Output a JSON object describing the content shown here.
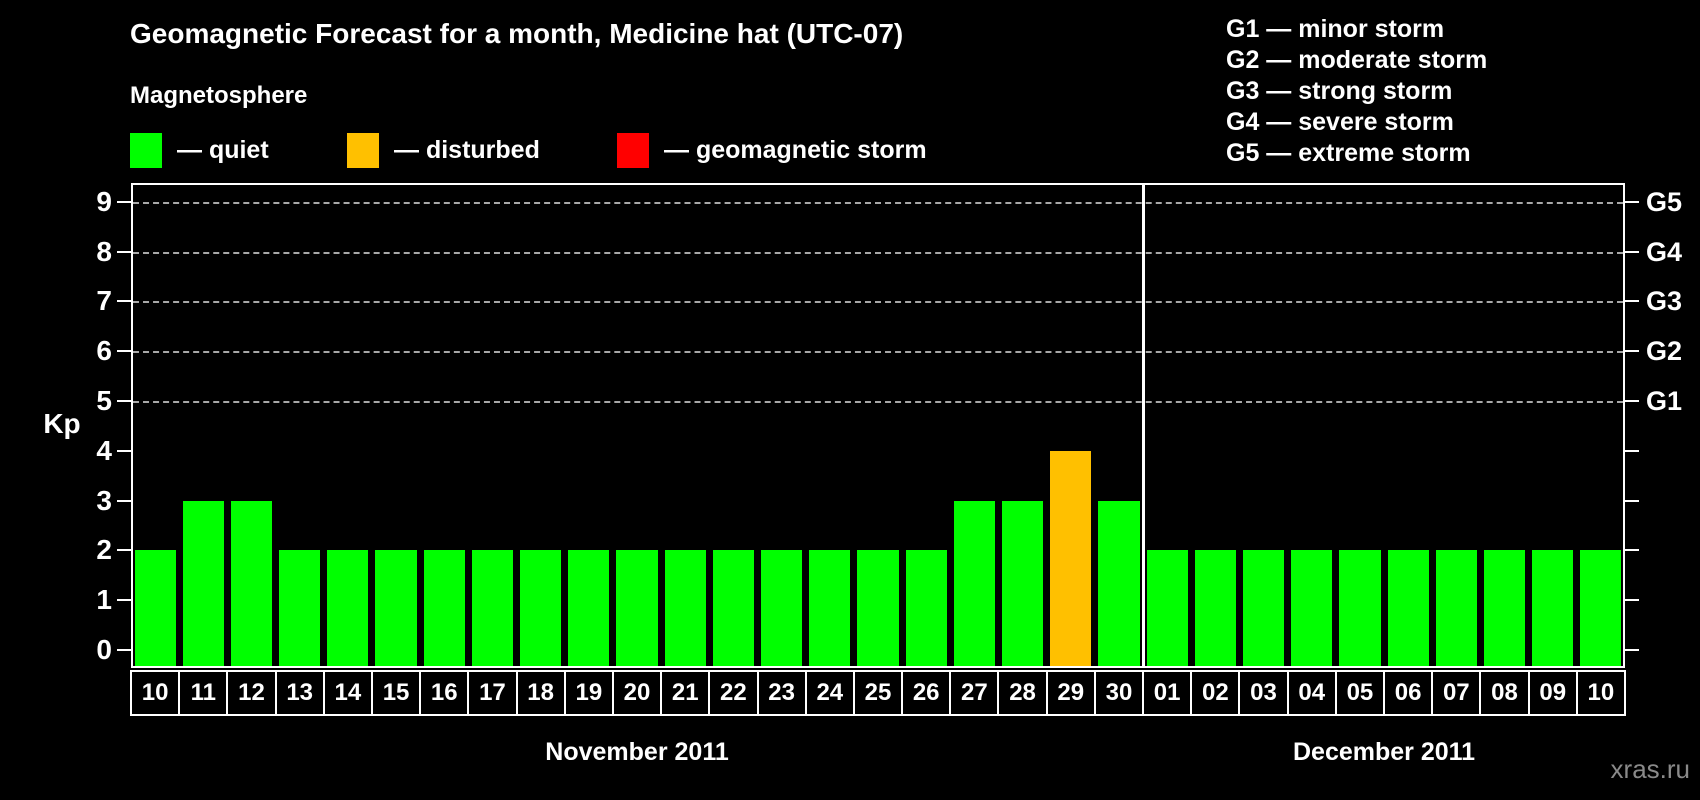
{
  "title": "Geomagnetic Forecast for a month, Medicine hat (UTC-07)",
  "legend": {
    "title": "Magnetosphere",
    "items": [
      {
        "state": "quiet",
        "label": "— quiet",
        "color": "#00ff00"
      },
      {
        "state": "disturbed",
        "label": "— disturbed",
        "color": "#ffc000"
      },
      {
        "state": "storm",
        "label": "— geomagnetic storm",
        "color": "#ff0000"
      }
    ]
  },
  "storm_scale_legend": [
    "G1 — minor storm",
    "G2 — moderate storm",
    "G3 — strong storm",
    "G4 — severe storm",
    "G5 — extreme storm"
  ],
  "watermark": "xras.ru",
  "chart_data": {
    "type": "bar",
    "title": "Geomagnetic Forecast for a month, Medicine hat (UTC-07)",
    "ylabel": "Kp",
    "ylim": [
      0,
      9.4
    ],
    "yticks": [
      0,
      1,
      2,
      3,
      4,
      5,
      6,
      7,
      8,
      9
    ],
    "gridline_levels": [
      5,
      6,
      7,
      8,
      9
    ],
    "grid_style": "dashed",
    "legend_position": "top",
    "right_axis_labels": [
      {
        "level": 5,
        "label": "G1"
      },
      {
        "level": 6,
        "label": "G2"
      },
      {
        "level": 7,
        "label": "G3"
      },
      {
        "level": 8,
        "label": "G4"
      },
      {
        "level": 9,
        "label": "G5"
      }
    ],
    "state_colors": {
      "quiet": "#00ff00",
      "disturbed": "#ffc000",
      "storm": "#ff0000"
    },
    "months": [
      {
        "label": "November 2011",
        "days": [
          "10",
          "11",
          "12",
          "13",
          "14",
          "15",
          "16",
          "17",
          "18",
          "19",
          "20",
          "21",
          "22",
          "23",
          "24",
          "25",
          "26",
          "27",
          "28",
          "29",
          "30"
        ],
        "values": [
          2,
          3,
          3,
          2,
          2,
          2,
          2,
          2,
          2,
          2,
          2,
          2,
          2,
          2,
          2,
          2,
          2,
          3,
          3,
          4,
          3
        ],
        "states": [
          "quiet",
          "quiet",
          "quiet",
          "quiet",
          "quiet",
          "quiet",
          "quiet",
          "quiet",
          "quiet",
          "quiet",
          "quiet",
          "quiet",
          "quiet",
          "quiet",
          "quiet",
          "quiet",
          "quiet",
          "quiet",
          "quiet",
          "disturbed",
          "quiet"
        ]
      },
      {
        "label": "December 2011",
        "days": [
          "01",
          "02",
          "03",
          "04",
          "05",
          "06",
          "07",
          "08",
          "09",
          "10"
        ],
        "values": [
          2,
          2,
          2,
          2,
          2,
          2,
          2,
          2,
          2,
          2
        ],
        "states": [
          "quiet",
          "quiet",
          "quiet",
          "quiet",
          "quiet",
          "quiet",
          "quiet",
          "quiet",
          "quiet",
          "quiet"
        ]
      }
    ]
  }
}
